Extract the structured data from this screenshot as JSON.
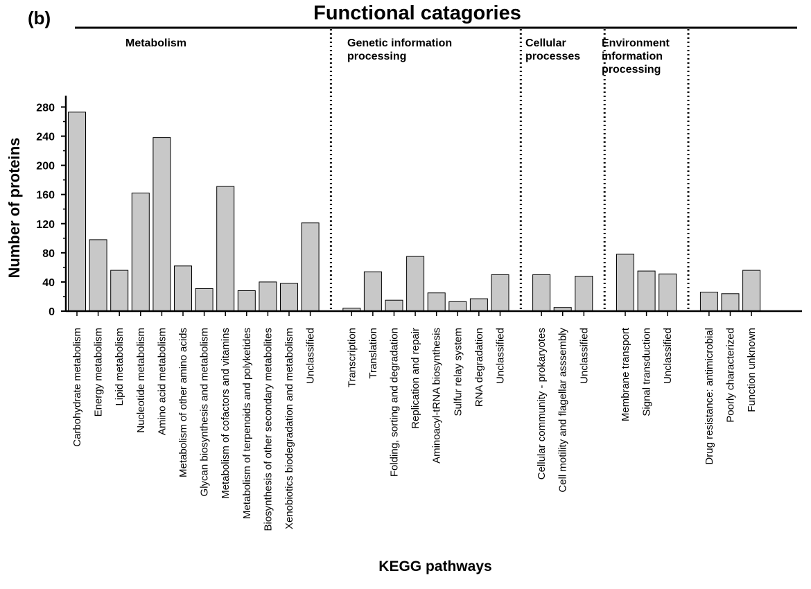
{
  "chart_data": {
    "type": "bar",
    "panel_label": "(b)",
    "title": "Functional catagories",
    "xlabel": "KEGG pathways",
    "ylabel": "Number of proteins",
    "ylim": [
      0,
      295
    ],
    "yticks": [
      0,
      40,
      80,
      120,
      160,
      200,
      240,
      280
    ],
    "grid": false,
    "bar_color": "#c8c8c8",
    "groups": [
      {
        "label_lines": [
          "Metabolism"
        ],
        "categories": [
          "Carbohydrate metabolism",
          "Energy metabolism",
          "Lipid metabolism",
          "Nucleotide metabolism",
          "Amino acid metabolism",
          "Metabolism of other amino acids",
          "Glycan biosynthesis and metabolism",
          "Metabolism of cofactors and vitamins",
          "Metabolism of terpenoids and polyketides",
          "Biosynthesis of other secondary metabolites",
          "Xenobiotics biodegradation and metabolism",
          "Unclassified"
        ],
        "values": [
          273,
          98,
          56,
          162,
          238,
          62,
          31,
          171,
          28,
          40,
          38,
          121
        ]
      },
      {
        "label_lines": [
          "Genetic information",
          "processing"
        ],
        "categories": [
          "Transcription",
          "Translation",
          "Folding, sorting and degradation",
          "Replication and repair",
          "Aminoacyl-tRNA biosynthesis",
          "Sulfur relay system",
          "RNA degradation",
          "Unclassified"
        ],
        "values": [
          4,
          54,
          15,
          75,
          25,
          13,
          17,
          50
        ]
      },
      {
        "label_lines": [
          "Cellular",
          "processes"
        ],
        "categories": [
          "Cellular community - prokaryotes",
          "Cell motility and flagellar asssembly",
          "Unclassified"
        ],
        "values": [
          50,
          5,
          48
        ]
      },
      {
        "label_lines": [
          "Environment",
          "information",
          "processing"
        ],
        "categories": [
          "Membrane transport",
          "Signal transduction",
          "Unclassified"
        ],
        "values": [
          78,
          55,
          51
        ]
      },
      {
        "label_lines": [],
        "categories": [
          "Drug resistance: antimicrobial",
          "Poorly characterized",
          "Function unknown"
        ],
        "values": [
          26,
          24,
          56
        ]
      }
    ]
  }
}
